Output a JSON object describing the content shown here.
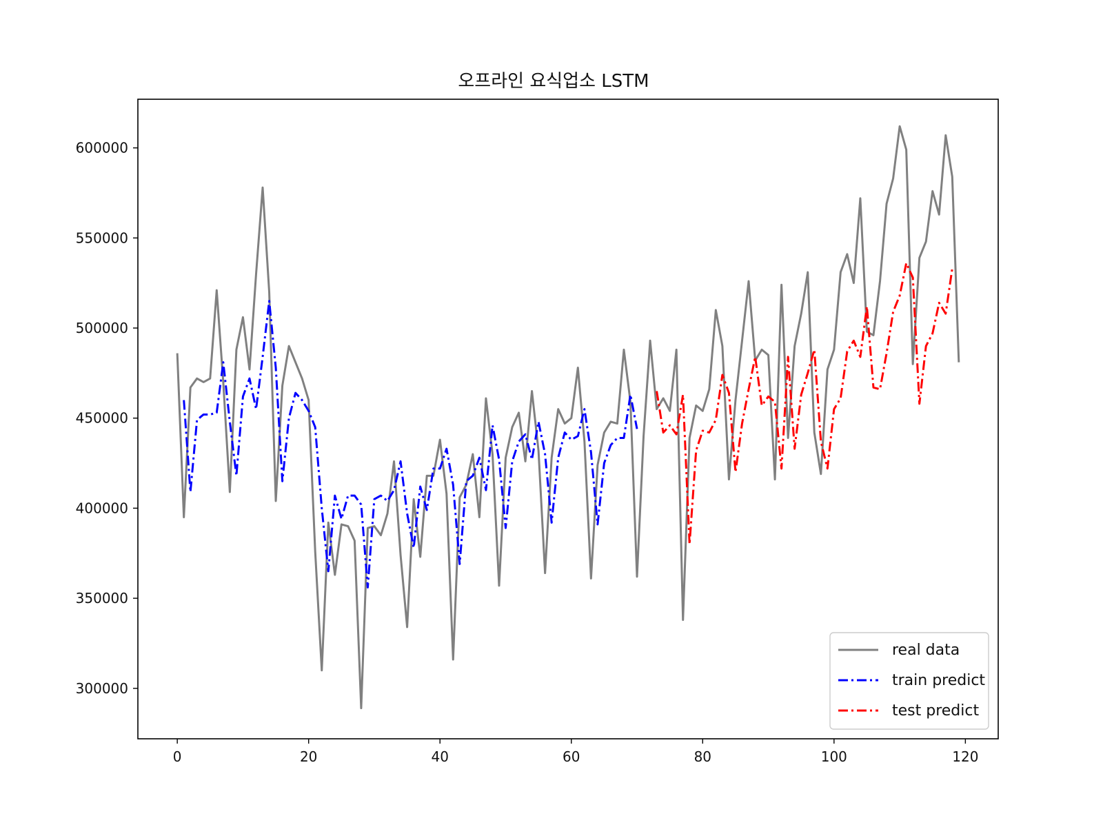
{
  "chart_data": {
    "type": "line",
    "title": "오프라인 요식업소 LSTM",
    "xlabel": "",
    "ylabel": "",
    "xlim": [
      -6,
      125
    ],
    "ylim": [
      272000,
      627000
    ],
    "x_ticks": [
      0,
      20,
      40,
      60,
      80,
      100,
      120
    ],
    "x_tick_labels": [
      "0",
      "20",
      "40",
      "60",
      "80",
      "100",
      "120"
    ],
    "y_ticks": [
      300000,
      350000,
      400000,
      450000,
      500000,
      550000,
      600000
    ],
    "y_tick_labels": [
      "300000",
      "350000",
      "400000",
      "450000",
      "500000",
      "550000",
      "600000"
    ],
    "grid": false,
    "legend_position": "lower-right",
    "series": [
      {
        "name": "real data",
        "color": "#808080",
        "style": "solid",
        "x_start": 0,
        "values": [
          486000,
          395000,
          467000,
          472000,
          470000,
          472000,
          521000,
          470000,
          409000,
          488000,
          506000,
          477000,
          530000,
          578000,
          520000,
          404000,
          468000,
          490000,
          481000,
          472000,
          460000,
          376000,
          310000,
          392000,
          363000,
          391000,
          390000,
          382000,
          289000,
          389000,
          390000,
          385000,
          397000,
          426000,
          374000,
          334000,
          405000,
          373000,
          418000,
          418000,
          438000,
          408000,
          316000,
          406000,
          413000,
          430000,
          395000,
          461000,
          430000,
          357000,
          428000,
          445000,
          453000,
          426000,
          465000,
          432000,
          364000,
          428000,
          455000,
          447000,
          450000,
          478000,
          437000,
          361000,
          424000,
          442000,
          448000,
          447000,
          488000,
          459000,
          362000,
          440000,
          493000,
          455000,
          461000,
          454000,
          488000,
          338000,
          439000,
          457000,
          454000,
          466000,
          510000,
          490000,
          416000,
          460000,
          493000,
          526000,
          482000,
          488000,
          485000,
          416000,
          524000,
          439000,
          490000,
          508000,
          531000,
          442000,
          419000,
          477000,
          488000,
          531000,
          541000,
          525000,
          572000,
          498000,
          496000,
          526000,
          569000,
          583000,
          612000,
          599000,
          480000,
          539000,
          548000,
          576000,
          563000,
          607000,
          584000,
          481000
        ]
      },
      {
        "name": "train predict",
        "color": "#0000ff",
        "style": "dashdot",
        "x_start": 1,
        "values": [
          460000,
          409000,
          449000,
          452000,
          452000,
          453000,
          481000,
          448000,
          418000,
          462000,
          472000,
          455000,
          484000,
          515000,
          478000,
          415000,
          450000,
          464000,
          460000,
          454000,
          445000,
          400000,
          365000,
          407000,
          394000,
          407000,
          407000,
          402000,
          356000,
          405000,
          407000,
          404000,
          410000,
          426000,
          397000,
          378000,
          412000,
          399000,
          422000,
          422000,
          433000,
          413000,
          369000,
          415000,
          418000,
          428000,
          410000,
          446000,
          427000,
          389000,
          426000,
          437000,
          441000,
          427000,
          448000,
          430000,
          392000,
          428000,
          442000,
          438000,
          440000,
          455000,
          431000,
          391000,
          425000,
          435000,
          439000,
          439000,
          463000,
          444000
        ]
      },
      {
        "name": "test predict",
        "color": "#ff0000",
        "style": "dashdot",
        "x_start": 73,
        "values": [
          465000,
          442000,
          446000,
          441000,
          463000,
          380000,
          432000,
          443000,
          442000,
          449000,
          474000,
          464000,
          420000,
          447000,
          466000,
          484000,
          457000,
          462000,
          459000,
          422000,
          484000,
          433000,
          463000,
          475000,
          488000,
          437000,
          422000,
          455000,
          461000,
          487000,
          493000,
          484000,
          512000,
          467000,
          466000,
          486000,
          509000,
          518000,
          536000,
          528000,
          458000,
          490000,
          497000,
          514000,
          508000,
          533000
        ]
      }
    ]
  }
}
